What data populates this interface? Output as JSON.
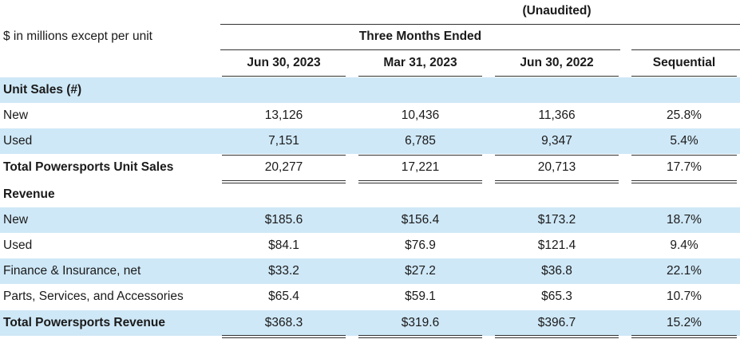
{
  "header": {
    "unaudited": "(Unaudited)",
    "units_note": "$ in millions except per unit",
    "period_group": "Three Months Ended",
    "columns": [
      "Jun 30, 2023",
      "Mar 31, 2023",
      "Jun 30, 2022",
      "Sequential"
    ]
  },
  "rows": [
    {
      "label": "Unit Sales (#)",
      "values": [
        "",
        "",
        "",
        ""
      ],
      "bold": true,
      "shaded": true
    },
    {
      "label": "New",
      "values": [
        "13,126",
        "10,436",
        "11,366",
        "25.8%"
      ],
      "bold": false,
      "shaded": false
    },
    {
      "label": "Used",
      "values": [
        "7,151",
        "6,785",
        "9,347",
        "5.4%"
      ],
      "bold": false,
      "shaded": true
    },
    {
      "label": "Total Powersports Unit Sales",
      "values": [
        "20,277",
        "17,221",
        "20,713",
        "17.7%"
      ],
      "bold": true,
      "shaded": false
    },
    {
      "label": "Revenue",
      "values": [
        "",
        "",
        "",
        ""
      ],
      "bold": true,
      "shaded": false
    },
    {
      "label": "New",
      "values": [
        "$185.6",
        "$156.4",
        "$173.2",
        "18.7%"
      ],
      "bold": false,
      "shaded": true
    },
    {
      "label": "Used",
      "values": [
        "$84.1",
        "$76.9",
        "$121.4",
        "9.4%"
      ],
      "bold": false,
      "shaded": false
    },
    {
      "label": "Finance & Insurance, net",
      "values": [
        "$33.2",
        "$27.2",
        "$36.8",
        "22.1%"
      ],
      "bold": false,
      "shaded": true
    },
    {
      "label": "Parts, Services, and Accessories",
      "values": [
        "$65.4",
        "$59.1",
        "$65.3",
        "10.7%"
      ],
      "bold": false,
      "shaded": false
    },
    {
      "label": "Total Powersports Revenue",
      "values": [
        "$368.3",
        "$319.6",
        "$396.7",
        "15.2%"
      ],
      "bold": true,
      "shaded": true
    }
  ]
}
